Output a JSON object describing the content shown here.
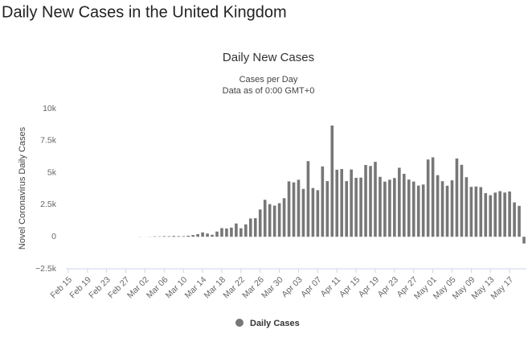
{
  "page_title": "Daily New Cases in the United Kingdom",
  "chart_data": {
    "type": "bar",
    "title": "Daily New Cases",
    "subtitle": [
      "Cases per Day",
      "Data as of 0:00 GMT+0"
    ],
    "y_label": "Novel Coronavirus Daily Cases",
    "categories": [
      "Feb 15",
      null,
      null,
      null,
      "Feb 19",
      null,
      null,
      null,
      "Feb 23",
      null,
      null,
      null,
      "Feb 27",
      null,
      null,
      null,
      "Mar 02",
      null,
      null,
      null,
      "Mar 06",
      null,
      null,
      null,
      "Mar 10",
      null,
      null,
      null,
      "Mar 14",
      null,
      null,
      null,
      "Mar 18",
      null,
      null,
      null,
      "Mar 22",
      null,
      null,
      null,
      "Mar 26",
      null,
      null,
      null,
      "Mar 30",
      null,
      null,
      null,
      "Apr 03",
      null,
      null,
      null,
      "Apr 07",
      null,
      null,
      null,
      "Apr 11",
      null,
      null,
      null,
      "Apr 15",
      null,
      null,
      null,
      "Apr 19",
      null,
      null,
      null,
      "Apr 23",
      null,
      null,
      null,
      "Apr 27",
      null,
      null,
      null,
      "May 01",
      null,
      null,
      null,
      "May 05",
      null,
      null,
      null,
      "May 09",
      null,
      null,
      null,
      "May 13",
      null,
      null,
      null,
      "May 17",
      null,
      null,
      null
    ],
    "series": [
      {
        "name": "Daily Cases",
        "color": "#777777",
        "values": [
          0,
          0,
          0,
          0,
          0,
          0,
          0,
          0,
          0,
          0,
          0,
          0,
          0,
          0,
          0,
          12,
          4,
          11,
          34,
          30,
          48,
          43,
          67,
          48,
          46,
          83,
          134,
          208,
          342,
          251,
          152,
          407,
          676,
          643,
          714,
          1035,
          665,
          967,
          1427,
          1452,
          2129,
          2885,
          2546,
          2433,
          2619,
          3009,
          4324,
          4244,
          4450,
          3735,
          5903,
          3802,
          3634,
          5491,
          4344,
          8681,
          5233,
          5288,
          4342,
          5252,
          4603,
          4617,
          5599,
          5525,
          5850,
          4676,
          4301,
          4451,
          4583,
          5386,
          4913,
          4463,
          4309,
          3996,
          4076,
          6032,
          6201,
          4806,
          4339,
          3985,
          4406,
          6111,
          5614,
          4649,
          3896,
          3923,
          3877,
          3403,
          3242,
          3446,
          3560,
          3451,
          3534,
          2684,
          2412,
          -525
        ]
      }
    ],
    "ylim": [
      -2500,
      10000
    ],
    "yticks": [
      {
        "value": -2500,
        "label": "−2.5k"
      },
      0,
      {
        "value": 2500,
        "label": "2.5k"
      },
      {
        "value": 5000,
        "label": "5k"
      },
      {
        "value": 7500,
        "label": "7.5k"
      },
      {
        "value": 10000,
        "label": "10k"
      }
    ],
    "grid": false,
    "legend": "bottom"
  }
}
